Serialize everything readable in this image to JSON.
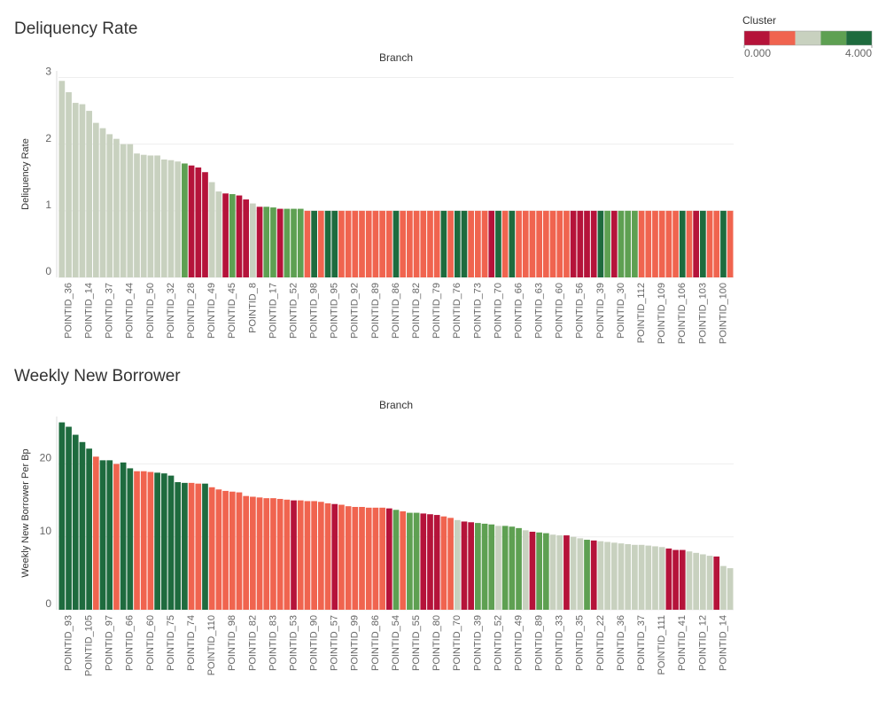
{
  "color_legend": {
    "title": "Cluster",
    "palette": [
      "#b5133a",
      "#f0644f",
      "#c8d1bf",
      "#5ea052",
      "#1e6b3e"
    ],
    "lim": [
      0,
      4
    ],
    "ticks": [
      {
        "value": 0,
        "label": "0.000"
      },
      {
        "value": 4,
        "label": "4.000"
      }
    ]
  },
  "chart_data": [
    {
      "type": "bar",
      "title": "Deliquency Rate",
      "header": "Branch",
      "y_label": "Deliquency Rate",
      "ylim": [
        0,
        3.1
      ],
      "yticks": [
        0,
        1,
        2,
        3
      ],
      "grid": true,
      "categories": [
        null,
        "POINTID_36",
        null,
        null,
        "POINTID_14",
        null,
        null,
        "POINTID_37",
        null,
        null,
        "POINTID_44",
        null,
        null,
        "POINTID_50",
        null,
        null,
        "POINTID_32",
        null,
        null,
        "POINTID_28",
        null,
        null,
        "POINTID_49",
        null,
        null,
        "POINTID_45",
        null,
        null,
        "POINTID_8",
        null,
        null,
        "POINTID_17",
        null,
        null,
        "POINTID_52",
        null,
        null,
        "POINTID_98",
        null,
        null,
        "POINTID_95",
        null,
        null,
        "POINTID_92",
        null,
        null,
        "POINTID_89",
        null,
        null,
        "POINTID_86",
        null,
        null,
        "POINTID_82",
        null,
        null,
        "POINTID_79",
        null,
        null,
        "POINTID_76",
        null,
        null,
        "POINTID_73",
        null,
        null,
        "POINTID_70",
        null,
        null,
        "POINTID_66",
        null,
        null,
        "POINTID_63",
        null,
        null,
        "POINTID_60",
        null,
        null,
        "POINTID_56",
        null,
        null,
        "POINTID_39",
        null,
        null,
        "POINTID_30",
        null,
        null,
        "POINTID_112",
        null,
        null,
        "POINTID_109",
        null,
        null,
        "POINTID_106",
        null,
        null,
        "POINTID_103",
        null,
        null,
        "POINTID_100",
        null
      ],
      "values": [
        2.95,
        2.78,
        2.62,
        2.6,
        2.5,
        2.32,
        2.24,
        2.15,
        2.08,
        2.0,
        2.0,
        1.86,
        1.84,
        1.83,
        1.83,
        1.77,
        1.76,
        1.74,
        1.71,
        1.68,
        1.65,
        1.58,
        1.43,
        1.29,
        1.26,
        1.25,
        1.23,
        1.17,
        1.11,
        1.06,
        1.06,
        1.05,
        1.03,
        1.03,
        1.03,
        1.03,
        1,
        1,
        1,
        1,
        1,
        1,
        1,
        1,
        1,
        1,
        1,
        1,
        1,
        1,
        1,
        1,
        1,
        1,
        1,
        1,
        1,
        1,
        1,
        1,
        1,
        1,
        1,
        1,
        1,
        1,
        1,
        1,
        1,
        1,
        1,
        1,
        1,
        1,
        1,
        1,
        1,
        1,
        1,
        1,
        1,
        1,
        1,
        1,
        1,
        1,
        1,
        1,
        1,
        1,
        1,
        1,
        1,
        1,
        1,
        1,
        1,
        1,
        1
      ],
      "cluster": [
        2,
        2,
        2,
        2,
        2,
        2,
        2,
        2,
        2,
        2,
        2,
        2,
        2,
        2,
        2,
        2,
        2,
        2,
        3,
        0,
        0,
        0,
        2,
        2,
        0,
        3,
        0,
        0,
        2,
        0,
        3,
        3,
        0,
        3,
        3,
        3,
        1,
        4,
        1,
        4,
        4,
        1,
        1,
        1,
        1,
        1,
        1,
        1,
        1,
        4,
        1,
        1,
        1,
        1,
        1,
        1,
        4,
        1,
        4,
        4,
        1,
        1,
        1,
        0,
        4,
        1,
        4,
        1,
        1,
        1,
        1,
        1,
        1,
        1,
        1,
        0,
        0,
        0,
        0,
        4,
        3,
        0,
        3,
        3,
        3,
        1,
        1,
        1,
        1,
        1,
        1,
        4,
        1,
        0,
        4,
        1,
        1,
        4,
        1
      ]
    },
    {
      "type": "bar",
      "title": "Weekly New Borrower",
      "header": "Branch",
      "y_label": "Weekly New Borrower Per Bp",
      "ylim": [
        0,
        26.5
      ],
      "yticks": [
        0,
        10,
        20
      ],
      "grid": true,
      "categories": [
        null,
        "POINTID_93",
        null,
        null,
        "POINTID_105",
        null,
        null,
        "POINTID_97",
        null,
        null,
        "POINTID_66",
        null,
        null,
        "POINTID_60",
        null,
        null,
        "POINTID_75",
        null,
        null,
        "POINTID_74",
        null,
        null,
        "POINTID_110",
        null,
        null,
        "POINTID_98",
        null,
        null,
        "POINTID_82",
        null,
        null,
        "POINTID_83",
        null,
        null,
        "POINTID_53",
        null,
        null,
        "POINTID_90",
        null,
        null,
        "POINTID_57",
        null,
        null,
        "POINTID_99",
        null,
        null,
        "POINTID_86",
        null,
        null,
        "POINTID_54",
        null,
        null,
        "POINTID_55",
        null,
        null,
        "POINTID_80",
        null,
        null,
        "POINTID_70",
        null,
        null,
        "POINTID_39",
        null,
        null,
        "POINTID_52",
        null,
        null,
        "POINTID_49",
        null,
        null,
        "POINTID_89",
        null,
        null,
        "POINTID_33",
        null,
        null,
        "POINTID_35",
        null,
        null,
        "POINTID_22",
        null,
        null,
        "POINTID_36",
        null,
        null,
        "POINTID_37",
        null,
        null,
        "POINTID_111",
        null,
        null,
        "POINTID_41",
        null,
        null,
        "POINTID_12",
        null,
        null,
        "POINTID_14",
        null
      ],
      "values": [
        25.7,
        25.1,
        24.0,
        23.0,
        22.1,
        21.0,
        20.5,
        20.5,
        20.0,
        20.2,
        19.4,
        19.0,
        19.0,
        18.9,
        18.8,
        18.7,
        18.4,
        17.5,
        17.4,
        17.4,
        17.3,
        17.3,
        16.8,
        16.5,
        16.3,
        16.2,
        16.1,
        15.6,
        15.5,
        15.4,
        15.3,
        15.3,
        15.2,
        15.1,
        15.0,
        15.0,
        14.9,
        14.9,
        14.8,
        14.6,
        14.5,
        14.4,
        14.2,
        14.1,
        14.1,
        14.0,
        14.0,
        14.0,
        13.9,
        13.7,
        13.5,
        13.3,
        13.3,
        13.2,
        13.1,
        13.0,
        12.8,
        12.6,
        12.3,
        12.1,
        12.0,
        11.9,
        11.8,
        11.7,
        11.5,
        11.5,
        11.4,
        11.2,
        10.9,
        10.7,
        10.6,
        10.5,
        10.3,
        10.2,
        10.2,
        10.0,
        9.8,
        9.6,
        9.5,
        9.4,
        9.3,
        9.2,
        9.1,
        9.0,
        8.9,
        8.9,
        8.8,
        8.7,
        8.6,
        8.4,
        8.2,
        8.2,
        8.0,
        7.8,
        7.6,
        7.4,
        7.3,
        6.0,
        5.7
      ],
      "cluster": [
        4,
        4,
        4,
        4,
        4,
        1,
        4,
        4,
        1,
        4,
        4,
        1,
        1,
        1,
        4,
        4,
        4,
        4,
        4,
        1,
        1,
        4,
        1,
        1,
        1,
        1,
        1,
        1,
        1,
        1,
        1,
        1,
        1,
        1,
        0,
        1,
        1,
        1,
        1,
        1,
        0,
        1,
        1,
        1,
        1,
        1,
        1,
        1,
        0,
        3,
        1,
        3,
        3,
        0,
        0,
        0,
        1,
        1,
        2,
        0,
        0,
        3,
        3,
        3,
        2,
        3,
        3,
        3,
        2,
        0,
        3,
        3,
        2,
        2,
        0,
        2,
        2,
        3,
        0,
        2,
        2,
        2,
        2,
        2,
        2,
        2,
        2,
        2,
        2,
        0,
        0,
        0,
        2,
        2,
        2,
        2,
        0,
        2,
        2
      ]
    }
  ]
}
